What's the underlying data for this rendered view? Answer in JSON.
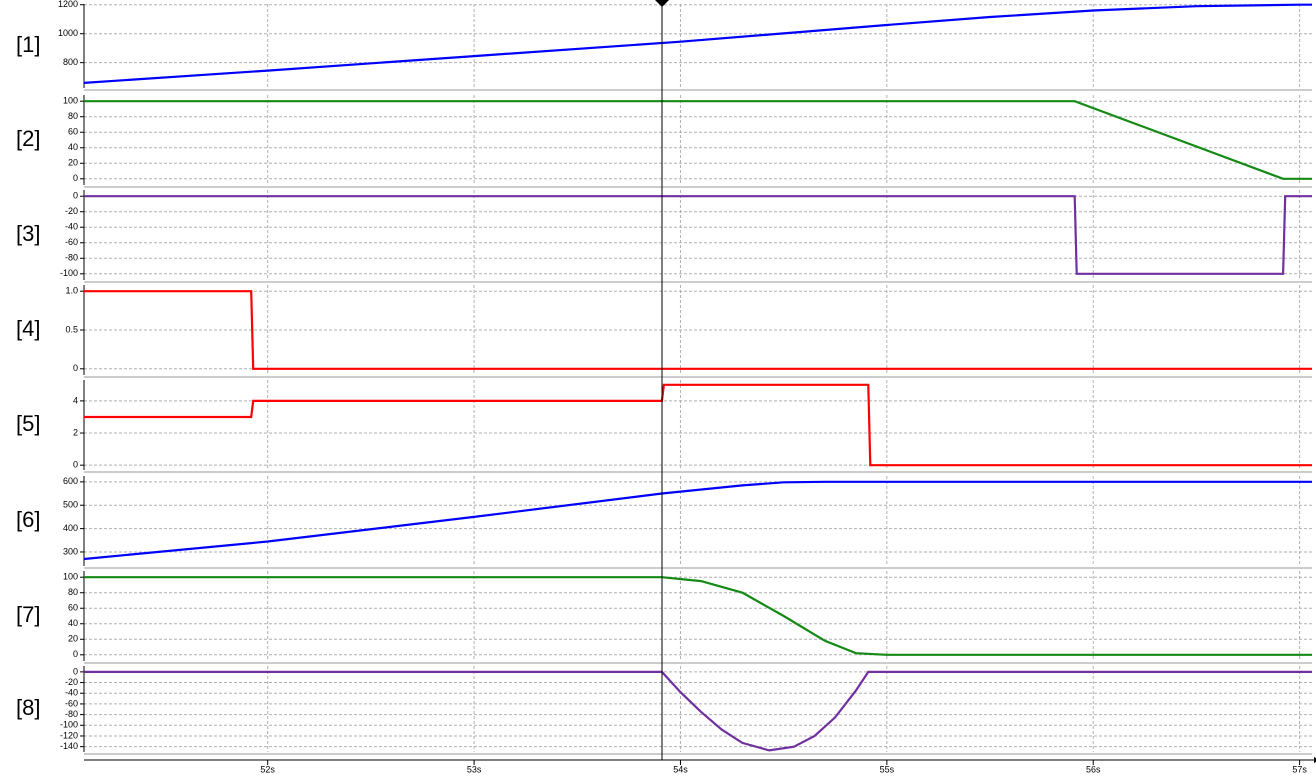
{
  "chart_data": [
    {
      "type": "line",
      "label": "[1]",
      "ylim": [
        625,
        1205
      ],
      "yticks": [
        800,
        1000,
        1200
      ],
      "series": [
        {
          "color": "#0000ff",
          "x": [
            51.11,
            52,
            53,
            54,
            55,
            55.5,
            56,
            56.5,
            57,
            57.06
          ],
          "values": [
            660,
            745,
            845,
            945,
            1060,
            1115,
            1160,
            1190,
            1200,
            1200
          ]
        }
      ]
    },
    {
      "type": "line",
      "label": "[2]",
      "ylim": [
        -8,
        108
      ],
      "yticks": [
        0,
        20,
        40,
        60,
        80,
        100
      ],
      "series": [
        {
          "color": "#138a13",
          "x": [
            51.11,
            55.91,
            56.92,
            57.06
          ],
          "values": [
            100,
            100,
            0,
            0
          ]
        }
      ]
    },
    {
      "type": "line",
      "label": "[3]",
      "ylim": [
        -108,
        8
      ],
      "yticks": [
        0,
        -20,
        -40,
        -60,
        -80,
        -100
      ],
      "series": [
        {
          "color": "#7030a0",
          "x": [
            51.11,
            55.91,
            55.92,
            56.92,
            56.93,
            57.06
          ],
          "values": [
            0,
            0,
            -100,
            -100,
            0,
            0
          ]
        }
      ]
    },
    {
      "type": "line",
      "label": "[4]",
      "ylim": [
        -0.08,
        1.08
      ],
      "yticks": [
        0,
        0.5,
        {
          "value": 1,
          "label": "1.0"
        }
      ],
      "series": [
        {
          "color": "#ff0000",
          "x": [
            51.11,
            51.92,
            51.93,
            57.06
          ],
          "values": [
            1,
            1,
            0,
            0
          ]
        }
      ]
    },
    {
      "type": "line",
      "label": "[5]",
      "ylim": [
        -0.3,
        5.3
      ],
      "yticks": [
        0,
        2,
        4
      ],
      "series": [
        {
          "color": "#ff0000",
          "x": [
            51.11,
            51.92,
            51.93,
            53.91,
            53.92,
            54.91,
            54.92,
            57.06
          ],
          "values": [
            3,
            3,
            4,
            4,
            5,
            5,
            0,
            0
          ]
        }
      ]
    },
    {
      "type": "line",
      "label": "[6]",
      "ylim": [
        240,
        625
      ],
      "yticks": [
        300,
        400,
        500,
        600
      ],
      "series": [
        {
          "color": "#0000ff",
          "x": [
            51.11,
            52,
            53,
            53.91,
            54.3,
            54.5,
            54.7,
            57.06
          ],
          "values": [
            270,
            345,
            450,
            550,
            585,
            598,
            600,
            600
          ]
        }
      ]
    },
    {
      "type": "line",
      "label": "[7]",
      "ylim": [
        -8,
        108
      ],
      "yticks": [
        0,
        20,
        40,
        60,
        80,
        100
      ],
      "series": [
        {
          "color": "#138a13",
          "x": [
            51.11,
            53.91,
            54.1,
            54.3,
            54.5,
            54.7,
            54.85,
            55,
            57.06
          ],
          "values": [
            100,
            100,
            95,
            80,
            50,
            18,
            2,
            0,
            0
          ]
        }
      ]
    },
    {
      "type": "line",
      "label": "[8]",
      "ylim": [
        -150,
        11
      ],
      "yticks": [
        0,
        -20,
        -40,
        -60,
        -80,
        -100,
        -120,
        -140
      ],
      "xlim": [
        51.11,
        57.06
      ],
      "xticks": [
        {
          "value": 52,
          "label": "52s"
        },
        {
          "value": 53,
          "label": "53s"
        },
        {
          "value": 54,
          "label": "54s"
        },
        {
          "value": 55,
          "label": "55s"
        },
        {
          "value": 56,
          "label": "56s"
        },
        {
          "value": 57,
          "label": "57s"
        }
      ],
      "series": [
        {
          "color": "#7030a0",
          "x": [
            51.11,
            53.91,
            54.0,
            54.1,
            54.2,
            54.3,
            54.43,
            54.55,
            54.65,
            54.75,
            54.85,
            54.91,
            57.06
          ],
          "values": [
            0,
            0,
            -38,
            -75,
            -108,
            -133,
            -147,
            -140,
            -120,
            -85,
            -35,
            0,
            0
          ]
        }
      ]
    }
  ]
}
